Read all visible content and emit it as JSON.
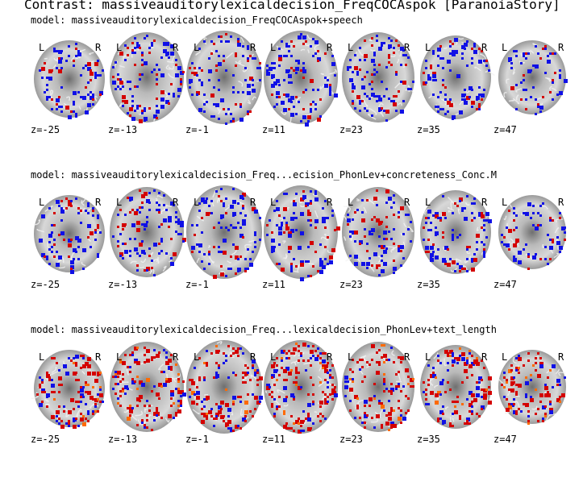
{
  "title": "Contrast: massiveauditorylexicaldecision_FreqCOCAspok [ParanoiaStory]",
  "left_marker": "L",
  "right_marker": "R",
  "z_labels": [
    "z=-25",
    "z=-13",
    "z=-1",
    "z=11",
    "z=23",
    "z=35",
    "z=47"
  ],
  "rows": [
    {
      "model": "model: massiveauditorylexicaldecision_FreqCOCAspok+speech",
      "dominant": "blue",
      "density": 0.1
    },
    {
      "model": "model: massiveauditorylexicaldecision_Freq...ecision_PhonLev+concreteness_Conc.M",
      "dominant": "blue",
      "density": 0.1
    },
    {
      "model": "model: massiveauditorylexicaldecision_Freq...lexicaldecision_PhonLev+text_length",
      "dominant": "red",
      "density": 0.14
    }
  ],
  "colors": {
    "positive": "#d40000",
    "positive_hot": "#ff6a00",
    "negative": "#1010e6",
    "tissue_light": "#d8d8d8",
    "tissue_dark": "#8a8a8a"
  }
}
